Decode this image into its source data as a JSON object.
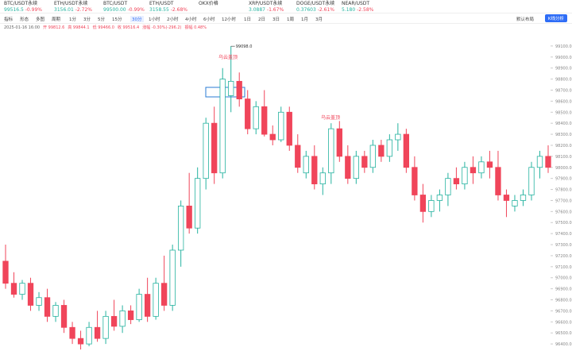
{
  "tabs": [
    {
      "symbol": "BTC/USDT永续",
      "price": "99516.5",
      "change": "-0.99%"
    },
    {
      "symbol": "ETH/USDT永续",
      "price": "3156.01",
      "change": "-2.72%"
    },
    {
      "symbol": "BTC/USDT",
      "price": "99500.00",
      "change": "-0.99%"
    },
    {
      "symbol": "ETH/USDT",
      "price": "3158.55",
      "change": "-2.68%"
    },
    {
      "symbol": "OKX价格",
      "price": null,
      "change": null
    },
    {
      "symbol": "XRP/USDT永续",
      "price": "3.0887",
      "change": "-1.67%"
    },
    {
      "symbol": "DOGE/USDT永续",
      "price": "0.37603",
      "change": "-2.61%"
    },
    {
      "symbol": "NEAR/USDT",
      "price": "5.180",
      "change": "-2.58%"
    }
  ],
  "toolbar": {
    "items": [
      "指标",
      "形态",
      "多图",
      "周期"
    ],
    "intervals": [
      "1分",
      "3分",
      "5分",
      "15分",
      "30分",
      "1小时",
      "2小时",
      "4小时",
      "6小时",
      "12小时",
      "1日",
      "2日",
      "3日",
      "1周",
      "1月",
      "3月"
    ],
    "layout": "默认布局",
    "analysis": "K线分析"
  },
  "info": [
    "2025-01-16 16:00",
    "开 99812.6",
    "高 99844.1",
    "低 99466.0",
    "收 99516.4",
    "涨幅 -0.30%(-296.2)",
    "振幅 0.48%"
  ],
  "chart_data": {
    "type": "candlestick",
    "up_color": "#26b3a0",
    "down_color": "#f0455a",
    "open": [
      97150,
      96950,
      96850,
      96950,
      96750,
      96820,
      96650,
      96750,
      96550,
      96450,
      96400,
      96550,
      96450,
      96650,
      96560,
      96700,
      96620,
      96850,
      96650,
      96950,
      96750,
      97250,
      97650,
      97450,
      97900,
      98400,
      97950,
      98650,
      98780,
      98620,
      98350,
      98550,
      98300,
      98250,
      98500,
      98200,
      97950,
      98100,
      97850,
      97950,
      98350,
      98100,
      97900,
      98100,
      98000,
      98200,
      98100,
      98250,
      98300,
      98000,
      97750,
      97600,
      97700,
      97750,
      97900,
      97850,
      98000,
      97950,
      98050,
      98000,
      97750,
      97650,
      97700,
      97750,
      98000,
      98100
    ],
    "high": [
      97300,
      97050,
      96980,
      97000,
      96870,
      96900,
      96780,
      96800,
      96600,
      96520,
      96600,
      96700,
      96700,
      96800,
      96750,
      96750,
      96900,
      97000,
      97000,
      97200,
      97300,
      97700,
      97950,
      98000,
      98450,
      98550,
      98900,
      99098,
      98860,
      98700,
      98600,
      98700,
      98380,
      98550,
      98550,
      98300,
      98150,
      98200,
      98000,
      98400,
      98420,
      98200,
      98150,
      98150,
      98250,
      98250,
      98300,
      98400,
      98350,
      98100,
      97850,
      97750,
      97800,
      97950,
      98000,
      98050,
      98100,
      98100,
      98150,
      98150,
      97800,
      97750,
      97800,
      98050,
      98150,
      98200
    ],
    "low": [
      96900,
      96820,
      96800,
      96700,
      96700,
      96600,
      96600,
      96500,
      96400,
      96350,
      96380,
      96420,
      96400,
      96520,
      96500,
      96580,
      96600,
      96600,
      96620,
      96700,
      96700,
      97100,
      97400,
      97400,
      97800,
      97850,
      97900,
      98500,
      98550,
      98300,
      98300,
      98280,
      98200,
      98230,
      98150,
      97950,
      97900,
      97800,
      97750,
      97850,
      98050,
      97850,
      97850,
      97950,
      97950,
      98050,
      98050,
      98150,
      97950,
      97700,
      97500,
      97550,
      97600,
      97650,
      97800,
      97800,
      97850,
      97900,
      97900,
      97700,
      97550,
      97600,
      97650,
      97700,
      97900,
      97950
    ],
    "close": [
      96950,
      96850,
      96950,
      96750,
      96820,
      96650,
      96750,
      96550,
      96450,
      96400,
      96550,
      96450,
      96650,
      96560,
      96700,
      96620,
      96850,
      96650,
      96950,
      96750,
      97250,
      97650,
      97450,
      97900,
      98400,
      97950,
      98800,
      98780,
      98620,
      98350,
      98550,
      98300,
      98250,
      98500,
      98200,
      98000,
      98100,
      97850,
      97950,
      98350,
      98100,
      97900,
      98100,
      98000,
      98200,
      98100,
      98250,
      98300,
      98000,
      97750,
      97600,
      97700,
      97750,
      97900,
      97850,
      98000,
      97950,
      98050,
      98000,
      97750,
      97700,
      97700,
      97750,
      98000,
      98100,
      98000
    ],
    "ylim": [
      96300,
      99200
    ],
    "yticks": [
      {
        "value": 96400,
        "label": "96400.0"
      },
      {
        "value": 96500,
        "label": "96500.0"
      },
      {
        "value": 96600,
        "label": "96600.0"
      },
      {
        "value": 96700,
        "label": "96700.0"
      },
      {
        "value": 96800,
        "label": "96800.0"
      },
      {
        "value": 96900,
        "label": "96900.0"
      },
      {
        "value": 97000,
        "label": "97000.0"
      },
      {
        "value": 97100,
        "label": "97100.0"
      },
      {
        "value": 97200,
        "label": "97200.0"
      },
      {
        "value": 97300,
        "label": "97300.0"
      },
      {
        "value": 97400,
        "label": "97400.0"
      },
      {
        "value": 97500,
        "label": "97500.0"
      },
      {
        "value": 97600,
        "label": "97600.0"
      },
      {
        "value": 97700,
        "label": "97700.0"
      },
      {
        "value": 97800,
        "label": "97800.0"
      },
      {
        "value": 97900,
        "label": "97900.0"
      },
      {
        "value": 98000,
        "label": "98000.0"
      },
      {
        "value": 98100,
        "label": "98100.0"
      },
      {
        "value": 98200,
        "label": "98200.0"
      },
      {
        "value": 98300,
        "label": "98300.0"
      },
      {
        "value": 98400,
        "label": "98400.0"
      },
      {
        "value": 98500,
        "label": "98500.0"
      },
      {
        "value": 98600,
        "label": "98600.0"
      },
      {
        "value": 98700,
        "label": "98700.0"
      },
      {
        "value": 98800,
        "label": "98800.0"
      },
      {
        "value": 98900,
        "label": "98900.0"
      },
      {
        "value": 99000,
        "label": "99000.0"
      },
      {
        "value": 99100,
        "label": "99100.0"
      }
    ],
    "high_label": "99098.0",
    "annotations": [
      "乌云盖顶",
      "乌云盖顶"
    ]
  }
}
